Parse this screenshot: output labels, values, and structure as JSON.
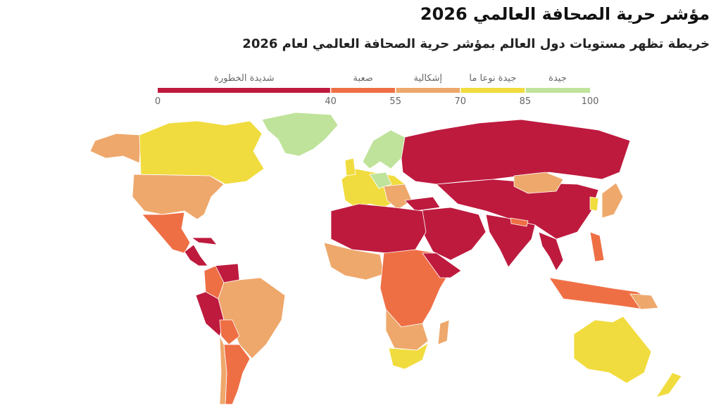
{
  "header": {
    "title": "مؤشر حرية الصحافة العالمي 2026",
    "subtitle": "خريطة تظهر مستويات دول العالم بمؤشر حرية الصحافة العالمي لعام 2026"
  },
  "legend": {
    "categories": [
      {
        "label": "شديدة الخطورة",
        "color": "#be1a3e"
      },
      {
        "label": "صعبة",
        "color": "#ef6f45"
      },
      {
        "label": "إشكالية",
        "color": "#eea86c"
      },
      {
        "label": "جيدة نوعا ما",
        "color": "#f1dc3f"
      },
      {
        "label": "جيدة",
        "color": "#bfe39a"
      }
    ],
    "ticks": [
      0,
      40,
      55,
      70,
      85,
      100
    ]
  }
}
